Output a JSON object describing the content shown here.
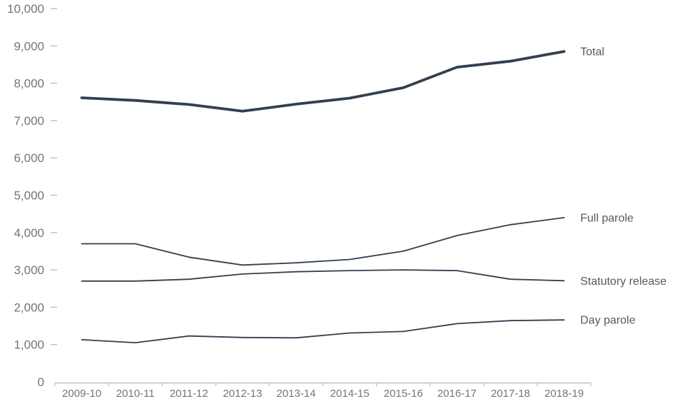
{
  "chart": {
    "line_color": "#333F50",
    "series_label_color": "#595959",
    "axis_label_color": "#757575",
    "axis_line_color": "#BFBFBF",
    "background_color": "#FFFFFF"
  },
  "chart_data": {
    "type": "line",
    "title": "",
    "xlabel": "",
    "ylabel": "",
    "categories": [
      "2009-10",
      "2010-11",
      "2011-12",
      "2012-13",
      "2013-14",
      "2014-15",
      "2015-16",
      "2016-17",
      "2017-18",
      "2018-19"
    ],
    "series": [
      {
        "name": "Total",
        "thick": true,
        "values": [
          7610,
          7540,
          7430,
          7250,
          7440,
          7600,
          7880,
          8430,
          8590,
          8850
        ]
      },
      {
        "name": "Full parole",
        "thick": false,
        "values": [
          3700,
          3700,
          3340,
          3130,
          3190,
          3280,
          3500,
          3920,
          4210,
          4400
        ]
      },
      {
        "name": "Statutory release",
        "thick": false,
        "values": [
          2700,
          2700,
          2750,
          2890,
          2950,
          2980,
          3000,
          2980,
          2750,
          2710
        ]
      },
      {
        "name": "Day parole",
        "thick": false,
        "values": [
          1130,
          1050,
          1230,
          1190,
          1180,
          1310,
          1350,
          1560,
          1640,
          1660
        ]
      }
    ],
    "ylim": [
      0,
      10000
    ],
    "y_ticks": [
      0,
      1000,
      2000,
      3000,
      4000,
      5000,
      6000,
      7000,
      8000,
      9000,
      10000
    ],
    "y_tick_labels": [
      "0",
      "1,000",
      "2,000",
      "3,000",
      "4,000",
      "5,000",
      "6,000",
      "7,000",
      "8,000",
      "9,000",
      "10,000"
    ],
    "grid": false,
    "legend_position": "labels-at-line-ends-right"
  }
}
